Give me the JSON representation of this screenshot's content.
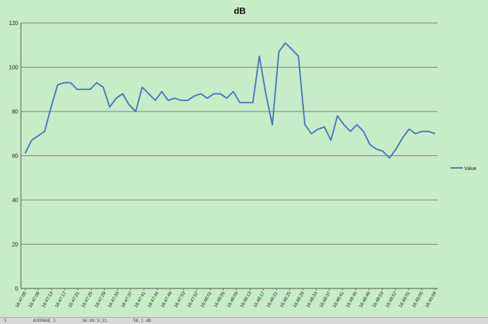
{
  "chart_data": {
    "type": "line",
    "title": "dB",
    "xlabel": "",
    "ylabel": "",
    "ylim": [
      0,
      120
    ],
    "yticks": [
      0,
      20,
      40,
      60,
      80,
      100,
      120
    ],
    "grid": "horizontal",
    "legend_position": "right",
    "x_tick_labels": [
      "16:47:05",
      "16:47:09",
      "16:47:13",
      "16:47:17",
      "16:47:21",
      "16:47:25",
      "16:47:29",
      "16:47:33",
      "16:47:37",
      "16:47:41",
      "16:47:45",
      "16:47:49",
      "16:47:53",
      "16:47:57",
      "16:48:01",
      "16:48:05",
      "16:48:09",
      "16:48:13",
      "16:48:17",
      "16:48:21",
      "16:48:25",
      "16:48:29",
      "16:48:33",
      "16:48:37",
      "16:48:41",
      "16:48:45",
      "16:48:49",
      "16:48:53",
      "16:48:57",
      "16:49:01",
      "16:49:05",
      "16:49:09"
    ],
    "series": [
      {
        "name": "Value",
        "color": "#4a78b8",
        "values": [
          61,
          67,
          69,
          71,
          82,
          92,
          93,
          93,
          90,
          90,
          90,
          93,
          91,
          82,
          86,
          88,
          83,
          80,
          91,
          88,
          85,
          89,
          85,
          86,
          85,
          85,
          87,
          88,
          86,
          88,
          88,
          86,
          89,
          84,
          84,
          84,
          105,
          88,
          74,
          107,
          111,
          108,
          105,
          74,
          70,
          72,
          73,
          67,
          78,
          74,
          71,
          74,
          71,
          65,
          63,
          62,
          59,
          63,
          68,
          72,
          70,
          71,
          71,
          70
        ]
      }
    ]
  },
  "status_bar": {
    "segments": [
      "5",
      "AVERAGE 1",
      "16:49:5:21",
      "58.1 dB"
    ]
  }
}
